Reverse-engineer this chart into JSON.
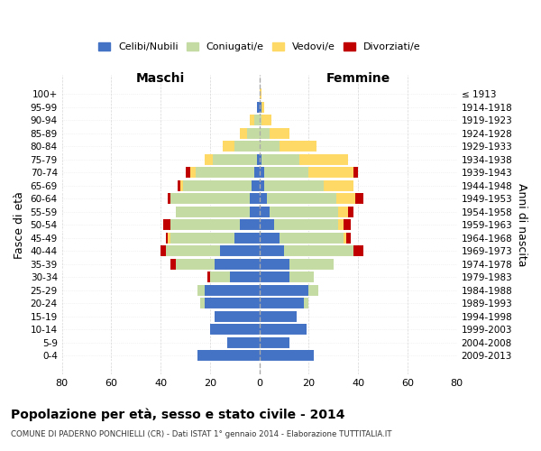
{
  "age_groups": [
    "0-4",
    "5-9",
    "10-14",
    "15-19",
    "20-24",
    "25-29",
    "30-34",
    "35-39",
    "40-44",
    "45-49",
    "50-54",
    "55-59",
    "60-64",
    "65-69",
    "70-74",
    "75-79",
    "80-84",
    "85-89",
    "90-94",
    "95-99",
    "100+"
  ],
  "birth_years": [
    "2009-2013",
    "2004-2008",
    "1999-2003",
    "1994-1998",
    "1989-1993",
    "1984-1988",
    "1979-1983",
    "1974-1978",
    "1969-1973",
    "1964-1968",
    "1959-1963",
    "1954-1958",
    "1949-1953",
    "1944-1948",
    "1939-1943",
    "1934-1938",
    "1929-1933",
    "1924-1928",
    "1919-1923",
    "1914-1918",
    "≤ 1913"
  ],
  "males": {
    "celibi": [
      25,
      13,
      20,
      18,
      22,
      22,
      12,
      18,
      16,
      10,
      8,
      4,
      4,
      3,
      2,
      1,
      0,
      0,
      0,
      1,
      0
    ],
    "coniugati": [
      0,
      0,
      0,
      0,
      2,
      3,
      8,
      16,
      22,
      26,
      28,
      30,
      32,
      28,
      24,
      18,
      10,
      5,
      2,
      0,
      0
    ],
    "vedovi": [
      0,
      0,
      0,
      0,
      0,
      0,
      0,
      0,
      0,
      1,
      0,
      0,
      0,
      1,
      2,
      3,
      5,
      3,
      2,
      0,
      0
    ],
    "divorziati": [
      0,
      0,
      0,
      0,
      0,
      0,
      1,
      2,
      2,
      1,
      3,
      0,
      1,
      1,
      2,
      0,
      0,
      0,
      0,
      0,
      0
    ]
  },
  "females": {
    "nubili": [
      22,
      12,
      19,
      15,
      18,
      20,
      12,
      12,
      10,
      8,
      6,
      4,
      3,
      2,
      2,
      1,
      0,
      0,
      0,
      1,
      0
    ],
    "coniugate": [
      0,
      0,
      0,
      0,
      2,
      4,
      10,
      18,
      28,
      26,
      26,
      28,
      28,
      24,
      18,
      15,
      8,
      4,
      1,
      0,
      0
    ],
    "vedove": [
      0,
      0,
      0,
      0,
      0,
      0,
      0,
      0,
      0,
      1,
      2,
      4,
      8,
      12,
      18,
      20,
      15,
      8,
      4,
      1,
      1
    ],
    "divorziate": [
      0,
      0,
      0,
      0,
      0,
      0,
      0,
      0,
      4,
      2,
      3,
      2,
      3,
      0,
      2,
      0,
      0,
      0,
      0,
      0,
      0
    ]
  },
  "colors": {
    "celibi": "#4472c4",
    "coniugati": "#c5dba4",
    "vedovi": "#ffd966",
    "divorziati": "#c00000"
  },
  "title": "Popolazione per età, sesso e stato civile - 2014",
  "subtitle": "COMUNE DI PADERNO PONCHIELLI (CR) - Dati ISTAT 1° gennaio 2014 - Elaborazione TUTTITALIA.IT",
  "xlabel_left": "Maschi",
  "xlabel_right": "Femmine",
  "ylabel_left": "Fasce di età",
  "ylabel_right": "Anni di nascita",
  "xlim": 80,
  "legend_labels": [
    "Celibi/Nubili",
    "Coniugati/e",
    "Vedovi/e",
    "Divorziati/e"
  ],
  "background_color": "#ffffff"
}
